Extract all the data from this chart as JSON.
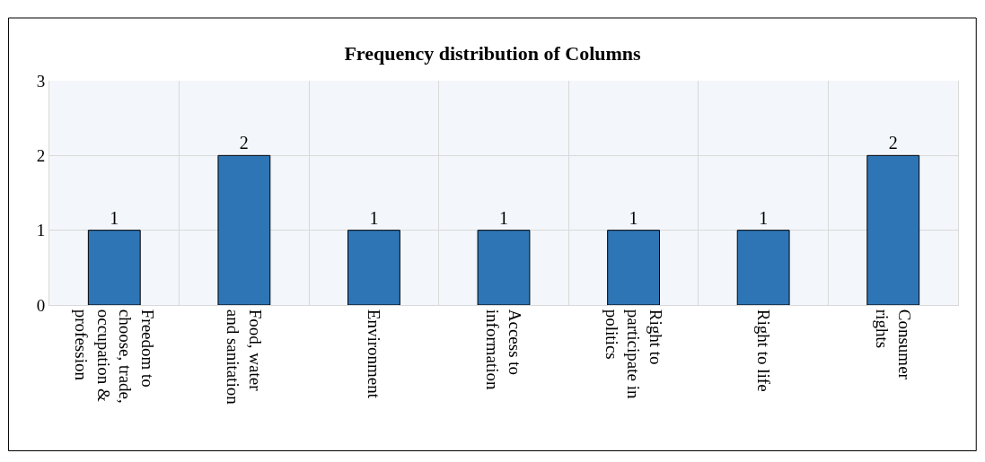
{
  "chart_data": {
    "type": "bar",
    "title": "Frequency distribution of Columns",
    "categories": [
      "Freedom to choose, trade, occupation & profession",
      "Food, water and sanitation",
      "Environment",
      "Access to information",
      "Right to participate in politics",
      "Right to life",
      "Consumer rights"
    ],
    "values": [
      1,
      2,
      1,
      1,
      1,
      1,
      2
    ],
    "color": "#2e75b6",
    "ylim": [
      0,
      3
    ],
    "yticks": [
      0,
      1,
      2,
      3
    ],
    "grid": true,
    "data_labels": true,
    "legend": false
  }
}
